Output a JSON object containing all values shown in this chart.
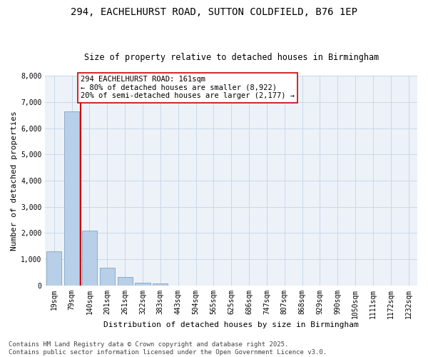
{
  "title_line1": "294, EACHELHURST ROAD, SUTTON COLDFIELD, B76 1EP",
  "title_line2": "Size of property relative to detached houses in Birmingham",
  "xlabel": "Distribution of detached houses by size in Birmingham",
  "ylabel": "Number of detached properties",
  "categories": [
    "19sqm",
    "79sqm",
    "140sqm",
    "201sqm",
    "261sqm",
    "322sqm",
    "383sqm",
    "443sqm",
    "504sqm",
    "565sqm",
    "625sqm",
    "686sqm",
    "747sqm",
    "807sqm",
    "868sqm",
    "929sqm",
    "990sqm",
    "1050sqm",
    "1111sqm",
    "1172sqm",
    "1232sqm"
  ],
  "values": [
    1300,
    6650,
    2100,
    680,
    310,
    110,
    80,
    0,
    0,
    0,
    0,
    0,
    0,
    0,
    0,
    0,
    0,
    0,
    0,
    0,
    0
  ],
  "bar_color": "#b8cfe8",
  "bar_edge_color": "#7099bb",
  "vline_x_index": 2,
  "vline_color": "#cc0000",
  "annotation_text": "294 EACHELHURST ROAD: 161sqm\n← 80% of detached houses are smaller (8,922)\n20% of semi-detached houses are larger (2,177) →",
  "annotation_box_facecolor": "#ffffff",
  "annotation_box_edgecolor": "#cc0000",
  "ylim": [
    0,
    8000
  ],
  "yticks": [
    0,
    1000,
    2000,
    3000,
    4000,
    5000,
    6000,
    7000,
    8000
  ],
  "grid_color": "#c8d8ea",
  "bg_color": "#edf2f8",
  "footer": "Contains HM Land Registry data © Crown copyright and database right 2025.\nContains public sector information licensed under the Open Government Licence v3.0.",
  "title_fontsize": 10,
  "subtitle_fontsize": 8.5,
  "axis_label_fontsize": 8,
  "tick_fontsize": 7,
  "annotation_fontsize": 7.5,
  "footer_fontsize": 6.5
}
